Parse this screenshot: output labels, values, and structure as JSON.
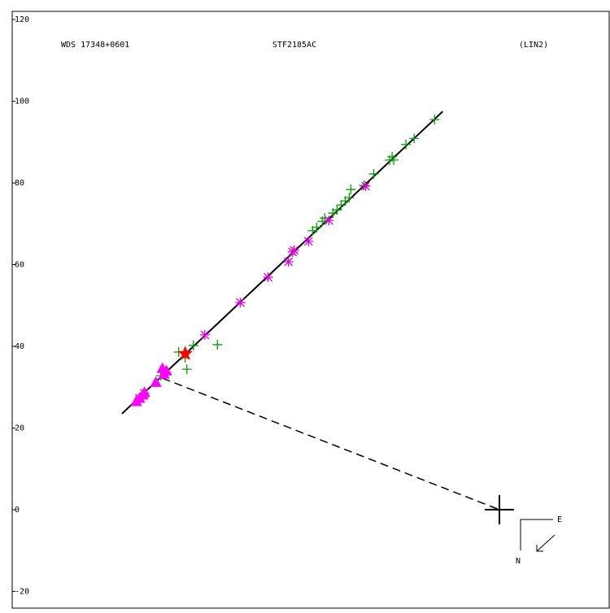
{
  "chart_data": {
    "type": "scatter",
    "title": "STF2185AC",
    "subtitle": "WDS 17348+0601",
    "annotation": "(LIN2)",
    "compass": {
      "east": "E",
      "north": "N"
    },
    "xlim": [
      -119.4,
      26.9
    ],
    "ylim": [
      -24.1,
      122
    ],
    "yticks": [
      -20,
      0,
      20,
      40,
      60,
      80,
      100,
      120
    ],
    "primary": {
      "x": 0,
      "y": 0,
      "color": "#000000"
    },
    "series": [
      {
        "marker": "plus",
        "color": "#00a000",
        "x": [
          -78.6,
          -76.6,
          -75.0,
          -69.1,
          -77.0,
          -83.0,
          -45.8,
          -44.8,
          -43.4,
          -42.8,
          -40.8,
          -39.8,
          -38.8,
          -37.8,
          -36.8,
          -36.4,
          -33.2,
          -30.8,
          -26.9,
          -26.3,
          -25.9,
          -22.9,
          -20.9,
          -15.9
        ],
        "values": [
          38.6,
          34.4,
          40.2,
          40.4,
          37.2,
          32.8,
          68.3,
          69.1,
          70.6,
          71.4,
          72.6,
          73.4,
          74.6,
          75.6,
          76.4,
          78.4,
          79.4,
          82.2,
          85.6,
          86.4,
          85.6,
          89.4,
          90.9,
          95.5
        ]
      },
      {
        "marker": "asterisk",
        "color": "#e000e0",
        "x": [
          -88.2,
          -87.0,
          -72.2,
          -63.5,
          -56.7,
          -51.7,
          -50.7,
          -50.3,
          -46.8,
          -41.8,
          -32.8
        ],
        "values": [
          27.3,
          28.5,
          42.8,
          50.7,
          56.9,
          60.7,
          63.1,
          63.5,
          65.7,
          70.8,
          79.2
        ]
      },
      {
        "marker": "triangle",
        "color": "#ff00ff",
        "x": [
          -89.0,
          -88.2,
          -87.4,
          -87.0,
          -84.2,
          -82.2,
          -81.6,
          -82.6
        ],
        "values": [
          26.5,
          27.3,
          28.1,
          28.7,
          31.2,
          33.2,
          34.0,
          34.6
        ]
      },
      {
        "marker": "star",
        "color": "#ff0000",
        "x": [
          -77.0
        ],
        "values": [
          38.2
        ]
      }
    ],
    "lines": [
      {
        "color": "#000000",
        "dashed": false,
        "x": [
          -92.5,
          -13.9
        ],
        "values": [
          23.5,
          97.5
        ]
      },
      {
        "color": "#000000",
        "dashed": true,
        "x": [
          -82.6,
          0
        ],
        "values": [
          32.2,
          0
        ]
      }
    ]
  }
}
